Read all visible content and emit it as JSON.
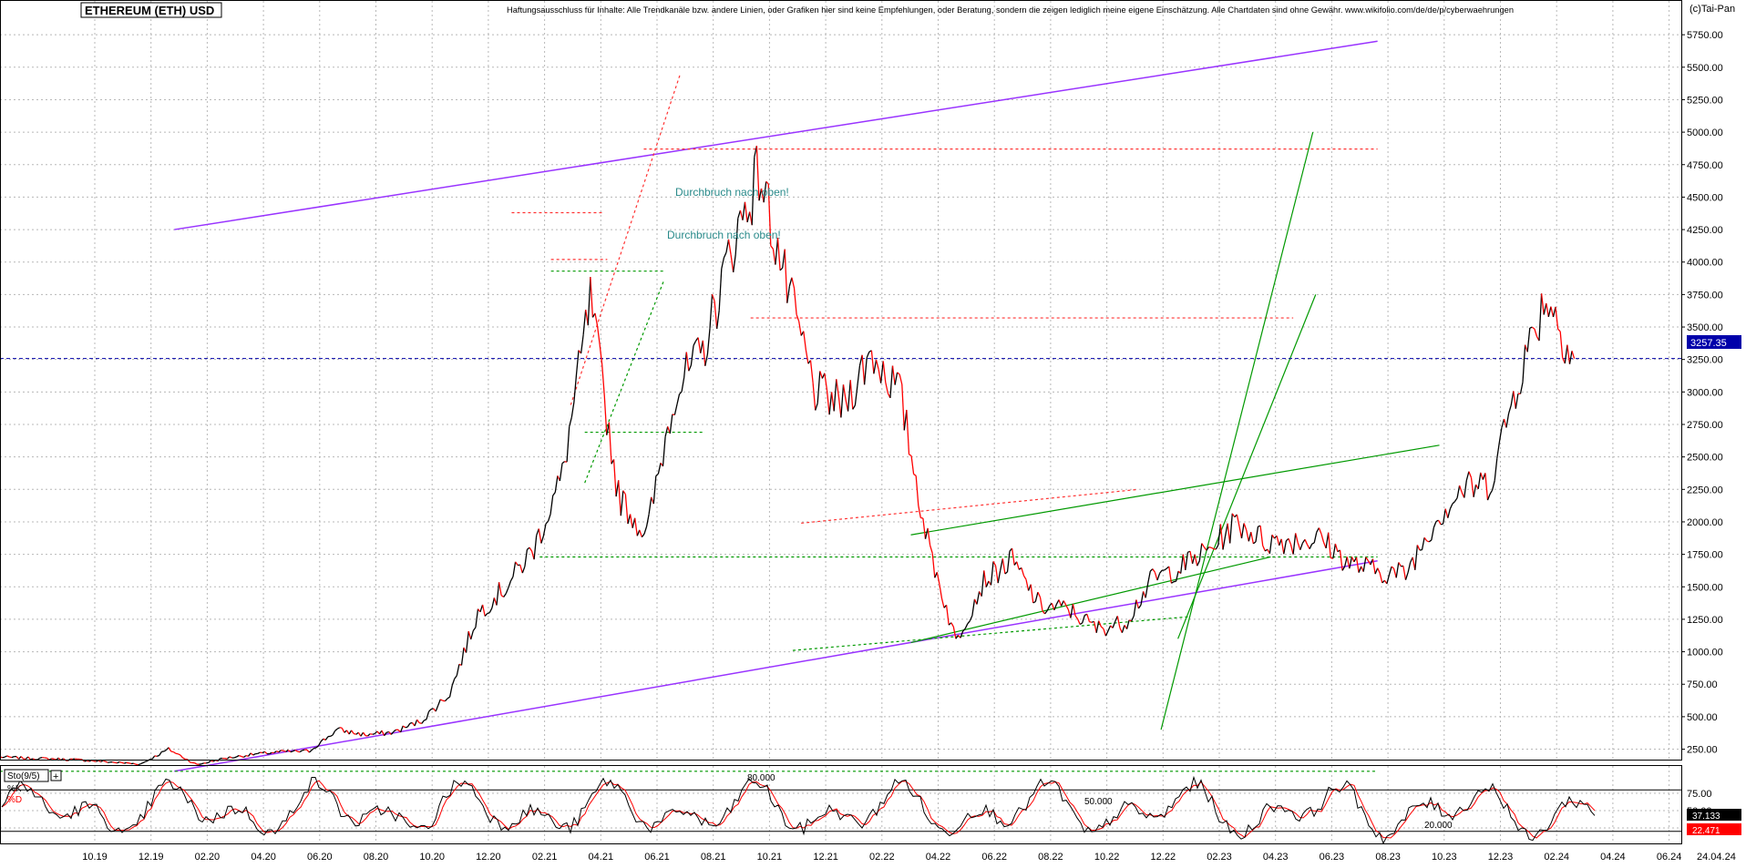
{
  "window": {
    "title": "ETHEREUM (ETH) USD",
    "disclaimer": "Haftungsausschluss für Inhalte: Alle Trendkanäle bzw. andere Linien, oder Grafiken hier sind keine Empfehlungen, oder Beratung, sondern die zeigen lediglich meine eigene Einschätzung. Alle Chartdaten sind ohne Gewähr. www.wikifolio.com/de/de/p/cyberwaehrungen",
    "copyright": "(c)Tai-Pan"
  },
  "colors": {
    "price_up": "#000000",
    "price_down": "#ff0000",
    "channel": "#9933ff",
    "trend": "#009900",
    "resistance": "#ff3333",
    "current_price_line": "#0000aa",
    "annotation_text": "#2a8a8a",
    "grid": "#b8b8b8",
    "sto_k": "#000000",
    "sto_d": "#ff0000"
  },
  "chart_data": [
    {
      "type": "line",
      "title": "ETHEREUM (ETH) USD",
      "xlabel": "",
      "ylabel": "",
      "ylim": [
        0,
        5750
      ],
      "grid": true,
      "y_ticks": [
        "250.00",
        "500.00",
        "750.00",
        "1000.00",
        "1250.00",
        "1500.00",
        "1750.00",
        "2000.00",
        "2250.00",
        "2500.00",
        "2750.00",
        "3000.00",
        "3250.00",
        "3500.00",
        "3750.00",
        "4000.00",
        "4250.00",
        "4500.00",
        "4750.00",
        "5000.00",
        "5250.00",
        "5500.00",
        "5750.00"
      ],
      "x_ticks": [
        "10.19",
        "12.19",
        "02.20",
        "04.20",
        "06.20",
        "08.20",
        "10.20",
        "12.20",
        "02.21",
        "04.21",
        "06.21",
        "08.21",
        "10.21",
        "12.21",
        "02.22",
        "04.22",
        "06.22",
        "08.22",
        "10.22",
        "12.22",
        "02.23",
        "04.23",
        "06.23",
        "08.23",
        "10.23",
        "12.23",
        "02.24",
        "04.24",
        "06.24"
      ],
      "x_end_label": "24.04.24",
      "last_price": "3257.35",
      "x": [
        "08.19",
        "09.19",
        "10.19",
        "11.19",
        "12.19",
        "01.20",
        "02.20",
        "03.20",
        "04.20",
        "05.20",
        "06.20",
        "07.20",
        "08.20",
        "09.20",
        "10.20",
        "11.20",
        "12.20",
        "01.21",
        "02.21",
        "03.21",
        "04.21",
        "05.21",
        "06.21",
        "07.21",
        "08.21",
        "09.21",
        "10.21",
        "11.21",
        "12.21",
        "01.22",
        "02.22",
        "03.22",
        "04.22",
        "05.22",
        "06.22",
        "07.22",
        "08.22",
        "09.22",
        "10.22",
        "11.22",
        "12.22",
        "01.23",
        "02.23",
        "03.23",
        "04.23",
        "05.23",
        "06.23",
        "07.23",
        "08.23",
        "09.23",
        "10.23",
        "11.23",
        "12.23",
        "01.24",
        "02.24",
        "03.24",
        "04.24"
      ],
      "series": [
        {
          "values": [
            190,
            180,
            175,
            165,
            150,
            135,
            250,
            130,
            180,
            210,
            230,
            235,
            400,
            360,
            380,
            470,
            680,
            1300,
            1500,
            1800,
            2350,
            3700,
            2200,
            1900,
            3000,
            3300,
            4100,
            4700,
            3800,
            3000,
            2900,
            3300,
            3000,
            1850,
            1080,
            1550,
            1700,
            1350,
            1330,
            1180,
            1220,
            1560,
            1650,
            1780,
            2000,
            1850,
            1860,
            1870,
            1680,
            1620,
            1600,
            2000,
            2250,
            2300,
            3100,
            3750,
            3257
          ]
        }
      ],
      "annotations": [
        "Durchbruch nach oben!",
        "Durchbruch nach oben!"
      ],
      "resistance_levels": [
        4870,
        3570,
        4380,
        4000
      ],
      "support_levels": [
        1730,
        2690,
        80
      ]
    },
    {
      "type": "line",
      "title": "Sto(9/5)",
      "legend": [
        "%K",
        "%D"
      ],
      "ylim": [
        0,
        100
      ],
      "y_ticks": [
        "25.00",
        "50.00",
        "75.00"
      ],
      "level_labels": [
        "80.000",
        "50.000",
        "20.000"
      ],
      "last_k": "37.133",
      "last_d": "22.471"
    }
  ]
}
